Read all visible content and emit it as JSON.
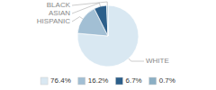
{
  "chart_data": {
    "type": "pie",
    "categories": [
      "WHITE",
      "HISPANIC",
      "ASIAN",
      "BLACK"
    ],
    "values": [
      76.4,
      16.2,
      6.7,
      0.7
    ],
    "value_labels": [
      "76.4%",
      "16.2%",
      "6.7%",
      "0.7%"
    ],
    "colors": [
      "#d9e8f2",
      "#a2bfd4",
      "#2c5f8a",
      "#8cafc4"
    ],
    "legend": "bottom"
  }
}
